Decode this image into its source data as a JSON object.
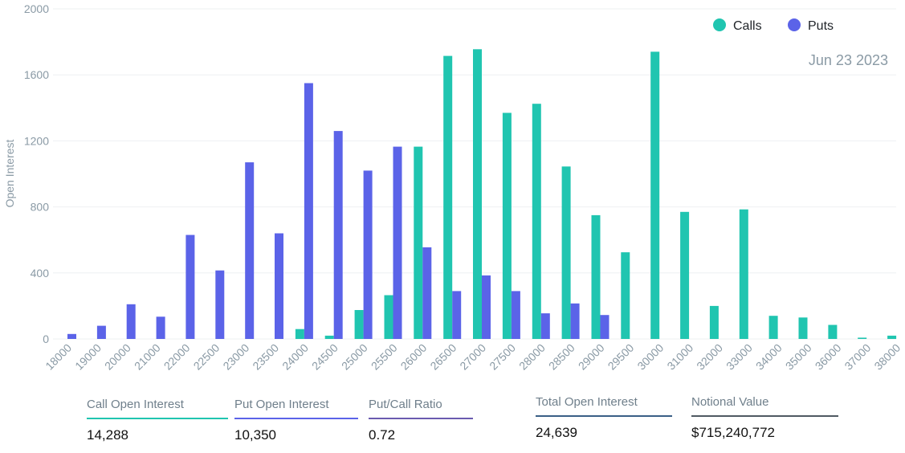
{
  "chart_data": {
    "type": "bar",
    "title": "",
    "date_label": "Jun 23 2023",
    "xlabel": "",
    "ylabel": "Open Interest",
    "ylim": [
      0,
      2000
    ],
    "yticks": [
      0,
      400,
      800,
      1200,
      1600,
      2000
    ],
    "grid": true,
    "legend_position": "top-right",
    "categories": [
      "18000",
      "19000",
      "20000",
      "21000",
      "22000",
      "22500",
      "23000",
      "23500",
      "24000",
      "24500",
      "25000",
      "25500",
      "26000",
      "26500",
      "27000",
      "27500",
      "28000",
      "28500",
      "29000",
      "29500",
      "30000",
      "31000",
      "32000",
      "33000",
      "34000",
      "35000",
      "36000",
      "37000",
      "38000"
    ],
    "series": [
      {
        "name": "Calls",
        "color": "#20c5b0",
        "values": [
          0,
          0,
          0,
          0,
          0,
          0,
          0,
          0,
          60,
          20,
          175,
          265,
          1165,
          1715,
          1755,
          1370,
          1425,
          1045,
          750,
          525,
          1740,
          770,
          200,
          785,
          140,
          130,
          85,
          8,
          20
        ]
      },
      {
        "name": "Puts",
        "color": "#5b63e8",
        "values": [
          30,
          80,
          210,
          135,
          630,
          415,
          1070,
          640,
          1550,
          1260,
          1020,
          1165,
          555,
          290,
          385,
          290,
          155,
          215,
          145,
          0,
          0,
          0,
          0,
          0,
          0,
          0,
          0,
          0,
          0
        ]
      }
    ]
  },
  "stats": [
    {
      "label": "Call Open Interest",
      "value": "14,288",
      "color": "#20c5b0"
    },
    {
      "label": "Put Open Interest",
      "value": "10,350",
      "color": "#5b63e8"
    },
    {
      "label": "Put/Call Ratio",
      "value": "0.72",
      "color": "#6a5bb0"
    },
    {
      "label": "Total Open Interest",
      "value": "24,639",
      "color": "#3a5f86"
    },
    {
      "label": "Notional Value",
      "value": "$715,240,772",
      "color": "#505a62"
    }
  ]
}
